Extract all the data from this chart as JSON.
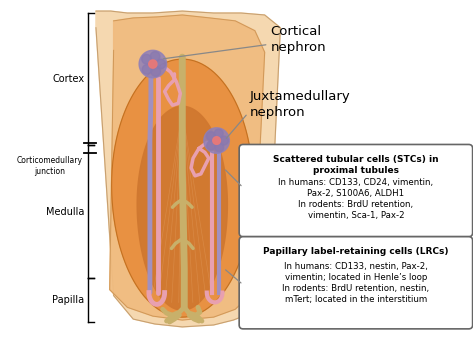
{
  "bg_color": "#ffffff",
  "cortex_label": "Cortex",
  "corticomedullary_label": "Corticomedullary\njunction",
  "medulla_label": "Medulla",
  "papilla_label": "Papilla",
  "cortical_nephron_label": "Cortical\nnephron",
  "juxtamedullary_label": "Juxtamedullary\nnephron",
  "stc_title": "Scattered tubular cells (STCs) in\nproximal tubules",
  "stc_text": "In humans: CD133, CD24, vimentin,\nPax-2, S100A6, ALDH1\nIn rodents: BrdU retention,\nvimentin, Sca-1, Pax-2",
  "lrc_title": "Papillary label-retaining cells (LRCs)",
  "lrc_text": "In humans: CD133, nestin, Pax-2,\nvimentin; located in Henle’s loop\nIn rodents: BrdU retention, nestin,\nmTert; located in the interstitium",
  "tubule_pink": "#e8a0b0",
  "tubule_purple": "#a090c0",
  "tubule_yellow": "#c8b06a",
  "glom_purple": "#9080b8",
  "glom_pink": "#e87878",
  "kidney_fan_color": "#f5d8b0",
  "kidney_cortex_color": "#f0bc80",
  "kidney_medulla_color": "#e89040",
  "kidney_papilla_color": "#d07830",
  "kidney_inner_lines": "#e09858"
}
